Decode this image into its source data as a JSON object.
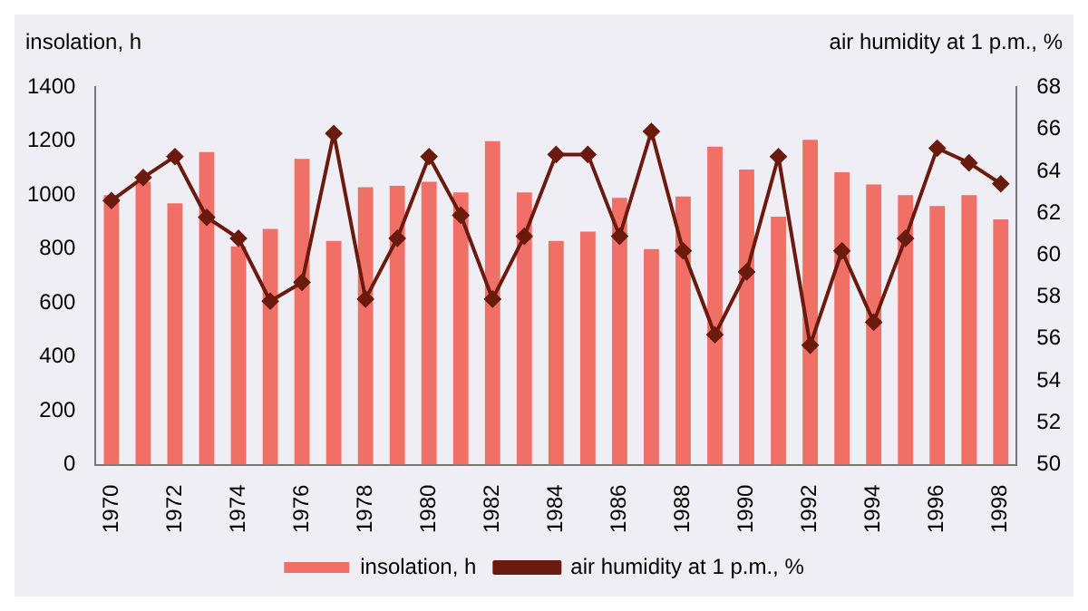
{
  "chart_data": {
    "type": "bar",
    "ylabel": "insolation, h",
    "y2label": "air humidity at 1 p.m., %",
    "categories": [
      "1970",
      null,
      "1972",
      null,
      "1974",
      null,
      "1976",
      null,
      "1978",
      null,
      "1980",
      null,
      "1982",
      null,
      "1984",
      null,
      "1986",
      null,
      "1988",
      null,
      "1990",
      null,
      "1992",
      null,
      "1994",
      null,
      "1996",
      null,
      "1998"
    ],
    "series": [
      {
        "name": "insolation, h",
        "color": "#f07068",
        "values": [
          1000,
          1050,
          970,
          1160,
          810,
          875,
          1135,
          830,
          1030,
          1035,
          1050,
          1010,
          1200,
          1010,
          830,
          865,
          990,
          800,
          995,
          1180,
          1095,
          920,
          1205,
          1085,
          1040,
          1000,
          960,
          1000,
          910
        ]
      },
      {
        "name": "air humidity at 1 p.m., %",
        "type": "line",
        "axis": "y2",
        "color": "#6b1a0e",
        "marker": "diamond",
        "values": [
          62.6,
          63.7,
          64.7,
          61.8,
          60.8,
          57.8,
          58.7,
          65.8,
          57.9,
          60.8,
          64.7,
          61.9,
          57.9,
          60.9,
          64.8,
          64.8,
          60.9,
          65.9,
          60.2,
          56.2,
          59.2,
          64.7,
          55.7,
          60.2,
          56.8,
          60.8,
          65.1,
          64.4,
          63.4
        ]
      }
    ],
    "ylim": [
      0,
      1400
    ],
    "yticks": [
      0,
      200,
      400,
      600,
      800,
      1000,
      1200,
      1400
    ],
    "y2lim": [
      50,
      68
    ],
    "y2ticks": [
      50,
      52,
      54,
      56,
      58,
      60,
      62,
      64,
      66,
      68
    ],
    "grid": false,
    "legend": "bottom"
  }
}
